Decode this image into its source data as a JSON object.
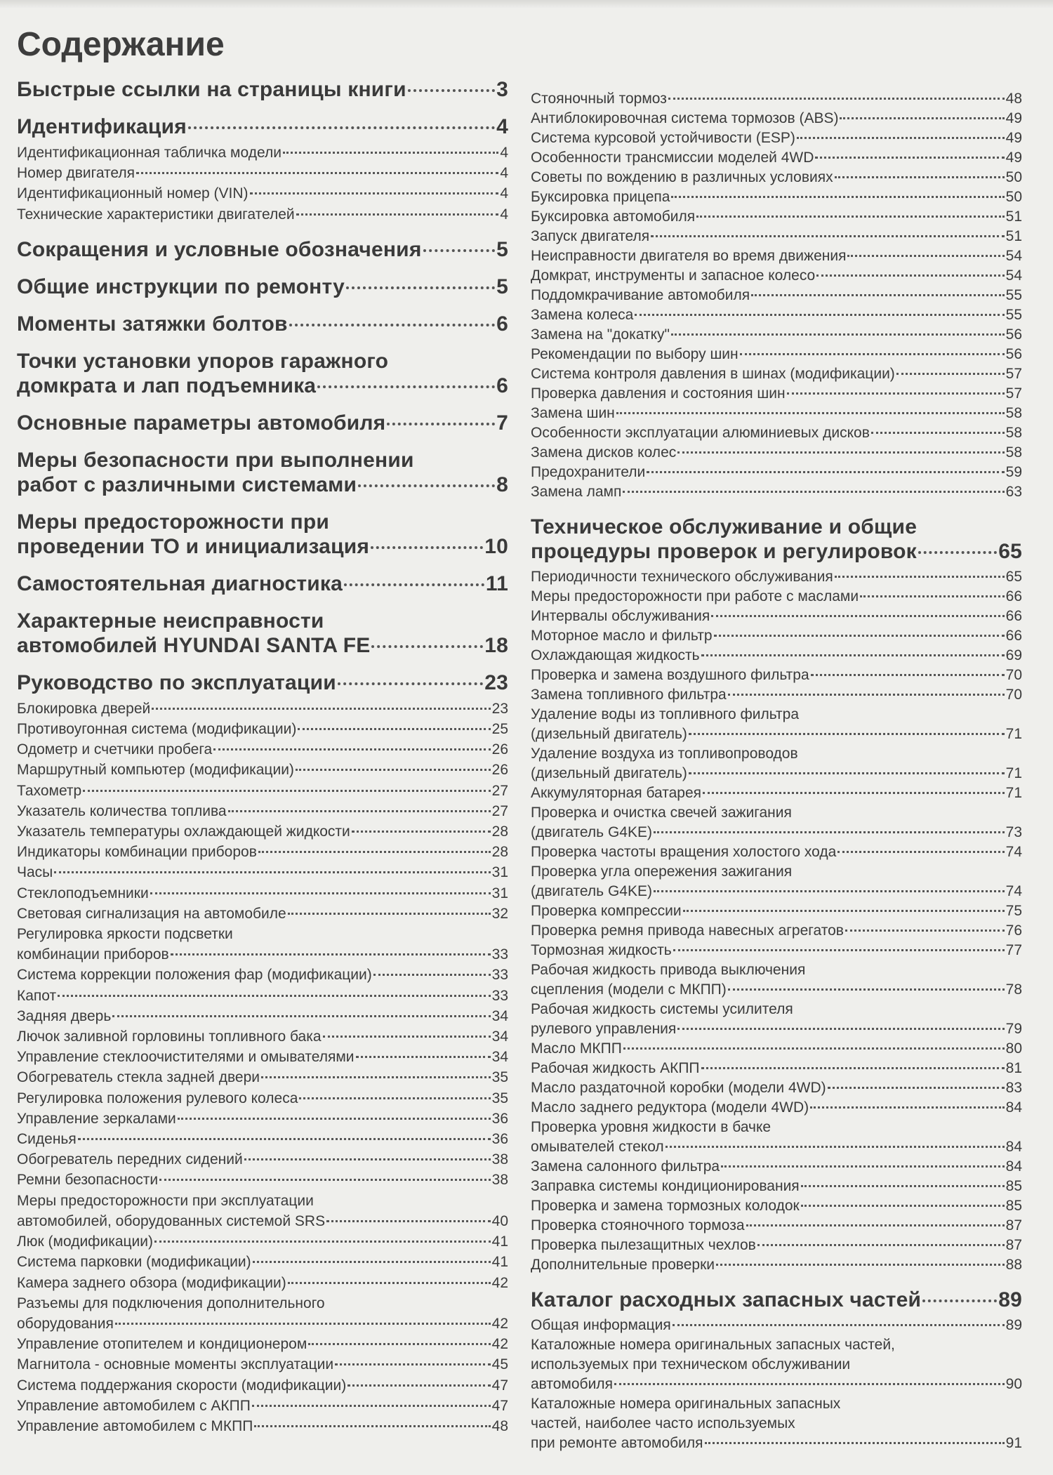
{
  "title": "Содержание",
  "left": [
    {
      "type": "h",
      "lines": [
        "Быстрые ссылки на страницы книги"
      ],
      "page": "3"
    },
    {
      "type": "h",
      "lines": [
        "Идентификация"
      ],
      "page": "4"
    },
    {
      "type": "s",
      "lines": [
        "Идентификационная табличка модели"
      ],
      "page": "4"
    },
    {
      "type": "s",
      "lines": [
        "Номер двигателя"
      ],
      "page": "4"
    },
    {
      "type": "s",
      "lines": [
        "Идентификационный номер (VIN)"
      ],
      "page": "4"
    },
    {
      "type": "s",
      "lines": [
        "Технические характеристики двигателей"
      ],
      "page": "4"
    },
    {
      "type": "h",
      "lines": [
        "Сокращения и условные обозначения"
      ],
      "page": "5"
    },
    {
      "type": "h",
      "lines": [
        "Общие инструкции по ремонту"
      ],
      "page": "5"
    },
    {
      "type": "h",
      "lines": [
        "Моменты затяжки болтов"
      ],
      "page": "6"
    },
    {
      "type": "h",
      "lines": [
        "Точки установки упоров гаражного",
        "домкрата и лап подъемника"
      ],
      "page": "6"
    },
    {
      "type": "h",
      "lines": [
        "Основные параметры автомобиля"
      ],
      "page": "7"
    },
    {
      "type": "h",
      "lines": [
        "Меры безопасности при выполнении",
        "работ с различными системами"
      ],
      "page": "8"
    },
    {
      "type": "h",
      "lines": [
        "Меры предосторожности при",
        "проведении ТО и инициализация"
      ],
      "page": "10"
    },
    {
      "type": "h",
      "lines": [
        "Самостоятельная диагностика"
      ],
      "page": "11"
    },
    {
      "type": "h",
      "lines": [
        "Характерные неисправности",
        "автомобилей HYUNDAI SANTA FE"
      ],
      "page": "18"
    },
    {
      "type": "h",
      "lines": [
        "Руководство по эксплуатации"
      ],
      "page": "23"
    },
    {
      "type": "s",
      "lines": [
        "Блокировка дверей"
      ],
      "page": "23"
    },
    {
      "type": "s",
      "lines": [
        "Противоугонная система (модификации)"
      ],
      "page": "25"
    },
    {
      "type": "s",
      "lines": [
        "Одометр и счетчики пробега"
      ],
      "page": "26"
    },
    {
      "type": "s",
      "lines": [
        "Маршрутный компьютер (модификации)"
      ],
      "page": "26"
    },
    {
      "type": "s",
      "lines": [
        "Тахометр"
      ],
      "page": "27"
    },
    {
      "type": "s",
      "lines": [
        "Указатель количества топлива"
      ],
      "page": "27"
    },
    {
      "type": "s",
      "lines": [
        "Указатель температуры охлаждающей жидкости"
      ],
      "page": "28"
    },
    {
      "type": "s",
      "lines": [
        "Индикаторы комбинации приборов"
      ],
      "page": "28"
    },
    {
      "type": "s",
      "lines": [
        "Часы"
      ],
      "page": "31"
    },
    {
      "type": "s",
      "lines": [
        "Стеклоподъемники"
      ],
      "page": "31"
    },
    {
      "type": "s",
      "lines": [
        "Световая сигнализация на автомобиле"
      ],
      "page": "32"
    },
    {
      "type": "s",
      "lines": [
        "Регулировка яркости подсветки",
        "комбинации приборов"
      ],
      "page": "33"
    },
    {
      "type": "s",
      "lines": [
        "Система коррекции положения фар (модификации)"
      ],
      "page": "33"
    },
    {
      "type": "s",
      "lines": [
        "Капот"
      ],
      "page": "33"
    },
    {
      "type": "s",
      "lines": [
        "Задняя дверь"
      ],
      "page": "34"
    },
    {
      "type": "s",
      "lines": [
        "Лючок заливной горловины топливного бака"
      ],
      "page": "34"
    },
    {
      "type": "s",
      "lines": [
        "Управление стеклоочистителями и омывателями"
      ],
      "page": "34"
    },
    {
      "type": "s",
      "lines": [
        "Обогреватель стекла задней двери"
      ],
      "page": "35"
    },
    {
      "type": "s",
      "lines": [
        "Регулировка положения рулевого колеса"
      ],
      "page": "35"
    },
    {
      "type": "s",
      "lines": [
        "Управление зеркалами"
      ],
      "page": "36"
    },
    {
      "type": "s",
      "lines": [
        "Сиденья"
      ],
      "page": "36"
    },
    {
      "type": "s",
      "lines": [
        "Обогреватель передних сидений"
      ],
      "page": "38"
    },
    {
      "type": "s",
      "lines": [
        "Ремни безопасности"
      ],
      "page": "38"
    },
    {
      "type": "s",
      "lines": [
        "Меры предосторожности при эксплуатации",
        "автомобилей, оборудованных системой SRS"
      ],
      "page": "40"
    },
    {
      "type": "s",
      "lines": [
        "Люк (модификации)"
      ],
      "page": "41"
    },
    {
      "type": "s",
      "lines": [
        "Система парковки (модификации)"
      ],
      "page": "41"
    },
    {
      "type": "s",
      "lines": [
        "Камера заднего обзора (модификации)"
      ],
      "page": "42"
    },
    {
      "type": "s",
      "lines": [
        "Разъемы для подключения дополнительного",
        "оборудования"
      ],
      "page": "42"
    },
    {
      "type": "s",
      "lines": [
        "Управление отопителем и кондиционером"
      ],
      "page": "42"
    },
    {
      "type": "s",
      "lines": [
        "Магнитола - основные моменты эксплуатации"
      ],
      "page": "45"
    },
    {
      "type": "s",
      "lines": [
        "Система поддержания скорости (модификации)"
      ],
      "page": "47"
    },
    {
      "type": "s",
      "lines": [
        "Управление автомобилем с АКПП"
      ],
      "page": "47"
    },
    {
      "type": "s",
      "lines": [
        "Управление автомобилем с МКПП"
      ],
      "page": "48"
    }
  ],
  "right": [
    {
      "type": "s",
      "lines": [
        "Стояночный тормоз"
      ],
      "page": "48"
    },
    {
      "type": "s",
      "lines": [
        "Антиблокировочная система тормозов (ABS)"
      ],
      "page": "49"
    },
    {
      "type": "s",
      "lines": [
        "Система курсовой устойчивости (ESP)"
      ],
      "page": "49"
    },
    {
      "type": "s",
      "lines": [
        "Особенности трансмиссии моделей 4WD"
      ],
      "page": "49"
    },
    {
      "type": "s",
      "lines": [
        "Советы по вождению в различных условиях"
      ],
      "page": "50"
    },
    {
      "type": "s",
      "lines": [
        "Буксировка прицепа"
      ],
      "page": "50"
    },
    {
      "type": "s",
      "lines": [
        "Буксировка автомобиля"
      ],
      "page": "51"
    },
    {
      "type": "s",
      "lines": [
        "Запуск двигателя"
      ],
      "page": "51"
    },
    {
      "type": "s",
      "lines": [
        "Неисправности двигателя во время движения"
      ],
      "page": "54"
    },
    {
      "type": "s",
      "lines": [
        "Домкрат, инструменты и запасное колесо"
      ],
      "page": "54"
    },
    {
      "type": "s",
      "lines": [
        "Поддомкрачивание автомобиля"
      ],
      "page": "55"
    },
    {
      "type": "s",
      "lines": [
        "Замена колеса"
      ],
      "page": "55"
    },
    {
      "type": "s",
      "lines": [
        "Замена на \"докатку\""
      ],
      "page": "56"
    },
    {
      "type": "s",
      "lines": [
        "Рекомендации по выбору шин"
      ],
      "page": "56"
    },
    {
      "type": "s",
      "lines": [
        "Система контроля давления в шинах (модификации)"
      ],
      "page": "57"
    },
    {
      "type": "s",
      "lines": [
        "Проверка давления и состояния шин"
      ],
      "page": "57"
    },
    {
      "type": "s",
      "lines": [
        "Замена шин"
      ],
      "page": "58"
    },
    {
      "type": "s",
      "lines": [
        "Особенности эксплуатации алюминиевых дисков"
      ],
      "page": "58"
    },
    {
      "type": "s",
      "lines": [
        "Замена дисков колес"
      ],
      "page": "58"
    },
    {
      "type": "s",
      "lines": [
        "Предохранители"
      ],
      "page": "59"
    },
    {
      "type": "s",
      "lines": [
        "Замена ламп"
      ],
      "page": "63"
    },
    {
      "type": "h",
      "lines": [
        "Техническое обслуживание и общие",
        "процедуры проверок и регулировок"
      ],
      "page": "65"
    },
    {
      "type": "s",
      "lines": [
        "Периодичности технического обслуживания"
      ],
      "page": "65"
    },
    {
      "type": "s",
      "lines": [
        "Меры предосторожности при работе с маслами"
      ],
      "page": "66"
    },
    {
      "type": "s",
      "lines": [
        "Интервалы обслуживания"
      ],
      "page": "66"
    },
    {
      "type": "s",
      "lines": [
        "Моторное масло и фильтр"
      ],
      "page": "66"
    },
    {
      "type": "s",
      "lines": [
        "Охлаждающая жидкость"
      ],
      "page": "69"
    },
    {
      "type": "s",
      "lines": [
        "Проверка и замена воздушного фильтра"
      ],
      "page": "70"
    },
    {
      "type": "s",
      "lines": [
        "Замена топливного фильтра"
      ],
      "page": "70"
    },
    {
      "type": "s",
      "lines": [
        "Удаление воды из топливного фильтра",
        "(дизельный двигатель)"
      ],
      "page": "71"
    },
    {
      "type": "s",
      "lines": [
        "Удаление воздуха из топливопроводов",
        "(дизельный двигатель)"
      ],
      "page": "71"
    },
    {
      "type": "s",
      "lines": [
        "Аккумуляторная батарея"
      ],
      "page": "71"
    },
    {
      "type": "s",
      "lines": [
        "Проверка и очистка свечей зажигания",
        "(двигатель G4KE)"
      ],
      "page": "73"
    },
    {
      "type": "s",
      "lines": [
        "Проверка частоты вращения холостого хода"
      ],
      "page": "74"
    },
    {
      "type": "s",
      "lines": [
        "Проверка угла опережения зажигания",
        "(двигатель G4KE)"
      ],
      "page": "74"
    },
    {
      "type": "s",
      "lines": [
        "Проверка компрессии"
      ],
      "page": "75"
    },
    {
      "type": "s",
      "lines": [
        "Проверка ремня привода навесных агрегатов"
      ],
      "page": "76"
    },
    {
      "type": "s",
      "lines": [
        "Тормозная жидкость"
      ],
      "page": "77"
    },
    {
      "type": "s",
      "lines": [
        "Рабочая жидкость привода выключения",
        "сцепления (модели с МКПП)"
      ],
      "page": "78"
    },
    {
      "type": "s",
      "lines": [
        "Рабочая жидкость системы усилителя",
        "рулевого управления"
      ],
      "page": "79"
    },
    {
      "type": "s",
      "lines": [
        "Масло МКПП"
      ],
      "page": "80"
    },
    {
      "type": "s",
      "lines": [
        "Рабочая жидкость АКПП"
      ],
      "page": "81"
    },
    {
      "type": "s",
      "lines": [
        "Масло раздаточной коробки (модели 4WD)"
      ],
      "page": "83"
    },
    {
      "type": "s",
      "lines": [
        "Масло заднего редуктора (модели 4WD)"
      ],
      "page": "84"
    },
    {
      "type": "s",
      "lines": [
        "Проверка уровня жидкости в бачке",
        "омывателей стекол"
      ],
      "page": "84"
    },
    {
      "type": "s",
      "lines": [
        "Замена салонного фильтра"
      ],
      "page": "84"
    },
    {
      "type": "s",
      "lines": [
        "Заправка системы кондиционирования"
      ],
      "page": "85"
    },
    {
      "type": "s",
      "lines": [
        "Проверка и замена тормозных колодок"
      ],
      "page": "85"
    },
    {
      "type": "s",
      "lines": [
        "Проверка стояночного тормоза"
      ],
      "page": "87"
    },
    {
      "type": "s",
      "lines": [
        "Проверка пылезащитных чехлов"
      ],
      "page": "87"
    },
    {
      "type": "s",
      "lines": [
        "Дополнительные проверки"
      ],
      "page": "88"
    },
    {
      "type": "h",
      "lines": [
        "Каталог расходных запасных частей"
      ],
      "page": "89"
    },
    {
      "type": "s",
      "lines": [
        "Общая информация"
      ],
      "page": "89"
    },
    {
      "type": "s",
      "lines": [
        "Каталожные номера оригинальных запасных частей,",
        "используемых при техническом обслуживании",
        "автомобиля"
      ],
      "page": "90"
    },
    {
      "type": "s",
      "lines": [
        "Каталожные номера оригинальных запасных",
        "частей, наиболее часто используемых",
        "при ремонте автомобиля"
      ],
      "page": "91"
    }
  ]
}
